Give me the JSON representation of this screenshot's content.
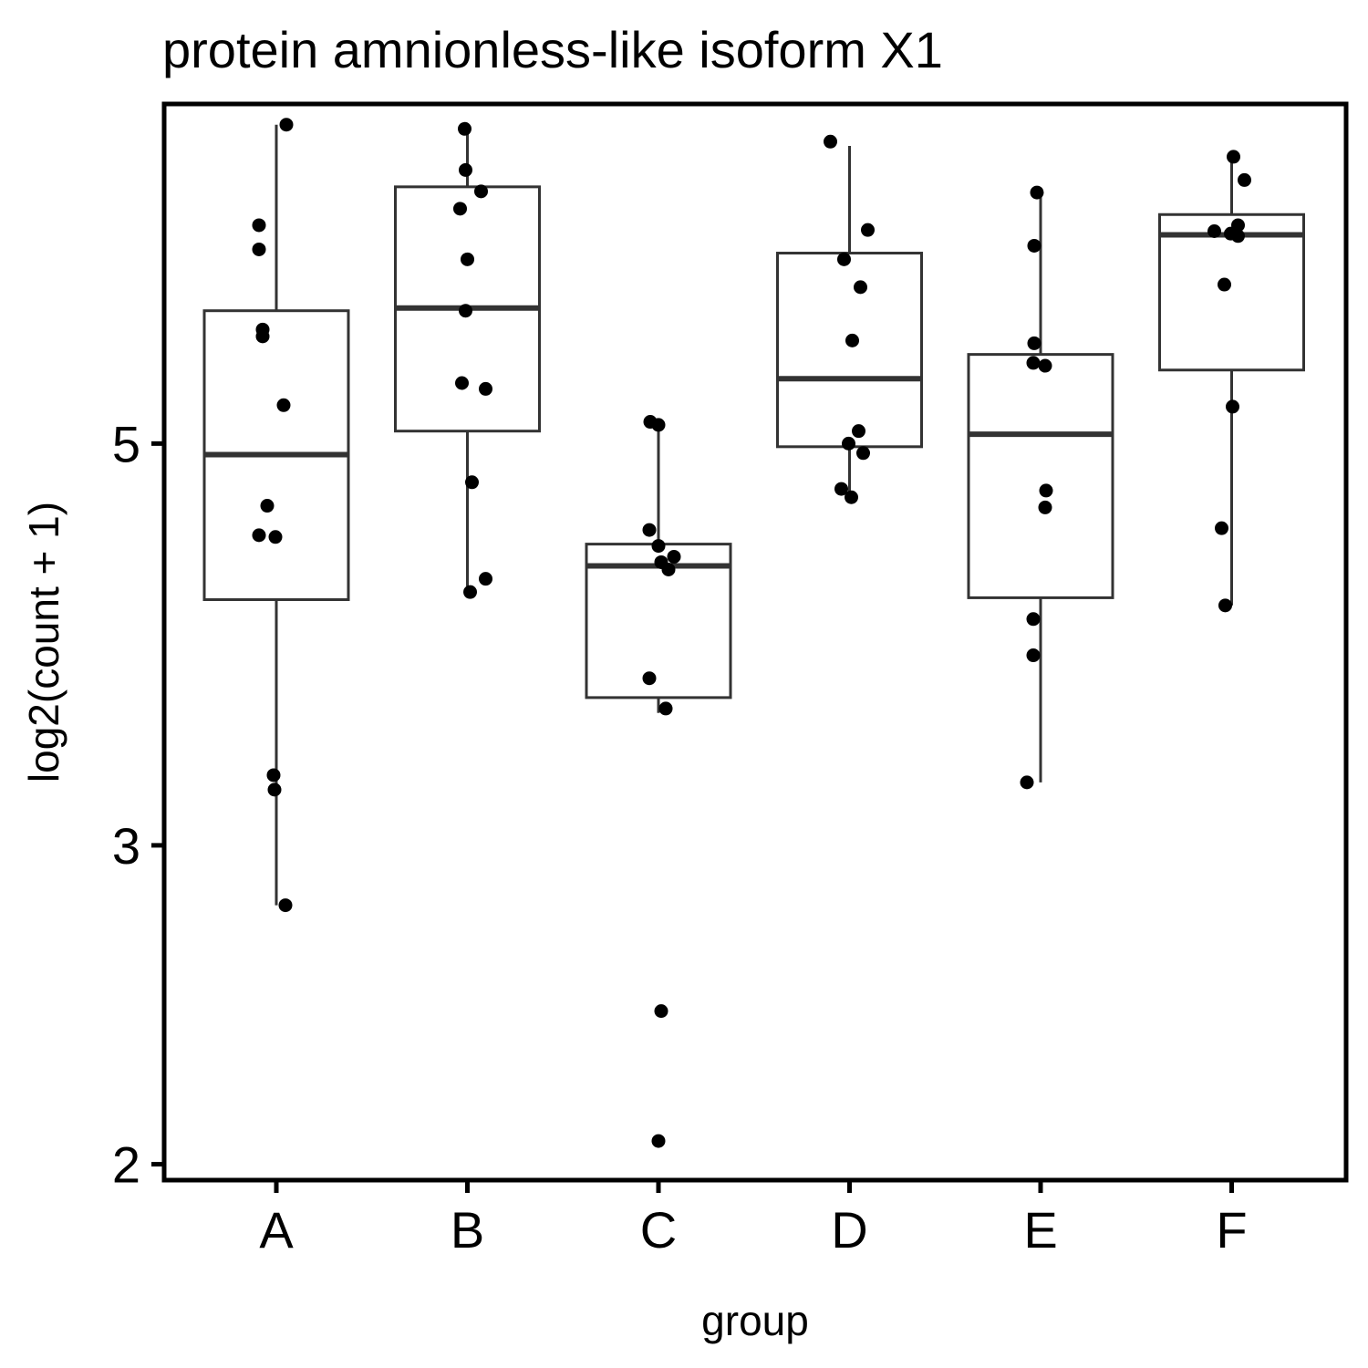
{
  "chart_data": {
    "type": "box",
    "title": "protein amnionless-like isoform X1",
    "xlabel": "group",
    "ylabel": "log2(count + 1)",
    "y_scale": "log",
    "ylim": [
      1.96,
      7.7
    ],
    "yticks": [
      2,
      3,
      5
    ],
    "grid": false,
    "legend": "none",
    "colors": {
      "box_stroke": "#333333",
      "points": "#000000",
      "frame": "#000000"
    },
    "categories": [
      "A",
      "B",
      "C",
      "D",
      "E",
      "F"
    ],
    "boxes": [
      {
        "group": "A",
        "q1": 4.1,
        "median": 4.93,
        "q3": 5.92,
        "whisker_low": 2.78,
        "whisker_high": 7.5
      },
      {
        "group": "B",
        "q1": 5.08,
        "median": 5.94,
        "q3": 6.93,
        "whisker_low": 4.17,
        "whisker_high": 7.46
      },
      {
        "group": "C",
        "q1": 3.62,
        "median": 4.28,
        "q3": 4.4,
        "whisker_low": 3.55,
        "whisker_high": 5.14
      },
      {
        "group": "D",
        "q1": 4.98,
        "median": 5.43,
        "q3": 6.37,
        "whisker_low": 4.67,
        "whisker_high": 7.3
      },
      {
        "group": "E",
        "q1": 4.11,
        "median": 5.06,
        "q3": 5.6,
        "whisker_low": 3.25,
        "whisker_high": 6.9
      },
      {
        "group": "F",
        "q1": 5.49,
        "median": 6.52,
        "q3": 6.69,
        "whisker_low": 4.07,
        "whisker_high": 7.2
      }
    ],
    "points": [
      {
        "group": "A",
        "values": [
          7.5,
          6.6,
          6.4,
          5.78,
          5.73,
          5.25,
          4.62,
          4.45,
          4.44,
          3.28,
          3.22,
          2.78
        ]
      },
      {
        "group": "B",
        "values": [
          7.46,
          7.08,
          6.89,
          6.74,
          6.32,
          5.92,
          5.4,
          5.36,
          4.76,
          4.21,
          4.14
        ]
      },
      {
        "group": "C",
        "values": [
          5.14,
          5.12,
          4.48,
          4.39,
          4.33,
          4.3,
          4.26,
          3.71,
          3.57,
          2.43,
          2.06
        ]
      },
      {
        "group": "D",
        "values": [
          7.34,
          6.56,
          6.32,
          6.1,
          5.7,
          5.08,
          5.0,
          4.94,
          4.72,
          4.67
        ]
      },
      {
        "group": "E",
        "values": [
          6.88,
          6.43,
          5.68,
          5.54,
          5.52,
          4.71,
          4.61,
          4.0,
          3.82,
          3.25
        ]
      },
      {
        "group": "F",
        "values": [
          7.2,
          6.99,
          6.6,
          6.53,
          6.55,
          6.51,
          6.12,
          5.24,
          4.49,
          4.07
        ]
      }
    ]
  }
}
